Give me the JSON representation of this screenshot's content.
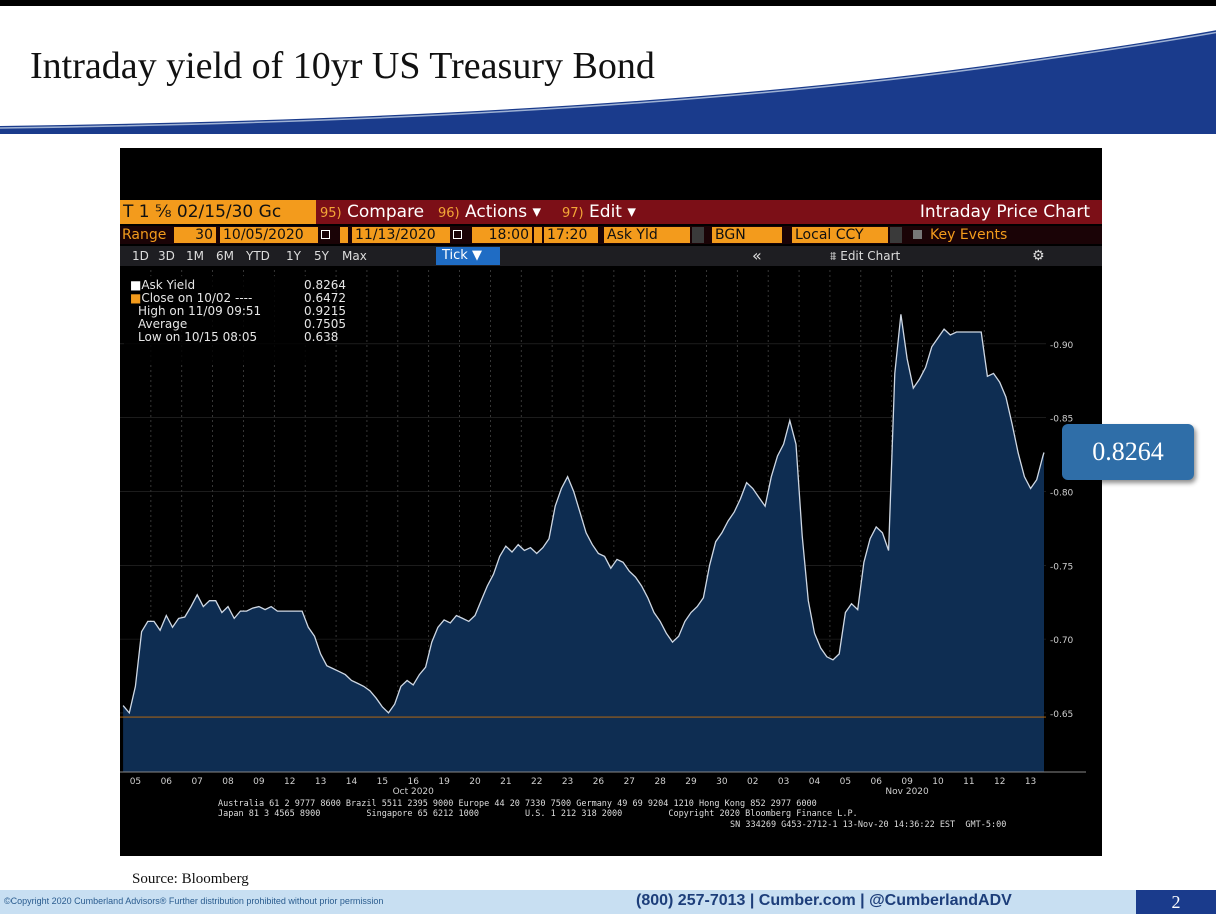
{
  "slide": {
    "title": "Intraday yield of 10yr US Treasury Bond",
    "source": "Source: Bloomberg",
    "callout_value": "0.8264",
    "footer": {
      "copyright": "©Copyright 2020 Cumberland Advisors® Further distribution prohibited without prior permission",
      "contact": "(800) 257-7013 | Cumber.com | @CumberlandADV",
      "page_number": "2"
    }
  },
  "terminal": {
    "ticker": "T 1 ⅝ 02/15/30 Gc",
    "toolbar": [
      {
        "num": "95)",
        "label": "Compare"
      },
      {
        "num": "96)",
        "label": "Actions ▾"
      },
      {
        "num": "97)",
        "label": "Edit ▾"
      }
    ],
    "chart_title": "Intraday Price Chart",
    "range_label": "Range",
    "range_fields": {
      "days": "30",
      "start_date": "10/05/2020",
      "end_date": "11/13/2020",
      "start_time": "18:00",
      "end_time": "17:20",
      "field": "Ask Yld",
      "source": "BGN",
      "currency": "Local CCY",
      "key_events": "Key Events"
    },
    "periods": [
      "1D",
      "3D",
      "1M",
      "6M",
      "YTD",
      "1Y",
      "5Y",
      "Max"
    ],
    "tick_button": "Tick ▼",
    "collapse_icon": "«",
    "edit_chart": "Edit Chart",
    "settings_icon": "⚙",
    "legend": [
      {
        "label": "Ask Yield",
        "value": "0.8264",
        "color": "#ffffff"
      },
      {
        "label": "Close on 10/02 ----",
        "value": "0.6472",
        "color": "#f39b1c"
      },
      {
        "label": "High on 11/09 09:51",
        "value": "0.9215",
        "color": "#aaaaaa"
      },
      {
        "label": "Average",
        "value": "0.7505",
        "color": "#aaaaaa"
      },
      {
        "label": "Low on 10/15 08:05",
        "value": "0.638",
        "color": "#aaaaaa"
      }
    ],
    "footer_lines": [
      "Australia 61 2 9777 8600 Brazil 5511 2395 9000 Europe 44 20 7330 7500 Germany 49 69 9204 1210 Hong Kong 852 2977 6000",
      "Japan 81 3 4565 8900         Singapore 65 6212 1000         U.S. 1 212 318 2000         Copyright 2020 Bloomberg Finance L.P.",
      "SN 334269 G453-2712-1 13-Nov-20 14:36:22 EST  GMT-5:00"
    ]
  },
  "chart_data": {
    "type": "area",
    "title": "",
    "xlabel": "",
    "ylabel": "",
    "ylim": [
      0.61,
      0.95
    ],
    "yticks": [
      0.65,
      0.7,
      0.75,
      0.8,
      0.85,
      0.9
    ],
    "ytick_labels": [
      "-0.65",
      "-0.70",
      "-0.75",
      "-0.80",
      "-0.85",
      "-0.90"
    ],
    "x_day_labels": [
      "05",
      "06",
      "07",
      "08",
      "09",
      "12",
      "13",
      "14",
      "15",
      "16",
      "19",
      "20",
      "21",
      "22",
      "23",
      "26",
      "27",
      "28",
      "29",
      "30",
      "02",
      "03",
      "04",
      "05",
      "06",
      "09",
      "10",
      "11",
      "12",
      "13"
    ],
    "x_month_labels": [
      {
        "label": "Oct 2020",
        "day_index": 9
      },
      {
        "label": "Nov 2020",
        "day_index": 25
      }
    ],
    "reference_lines": [
      {
        "name": "Close on 10/02",
        "value": 0.6472,
        "color": "#c8700a"
      }
    ],
    "grid": true,
    "series": [
      {
        "name": "Ask Yield",
        "color": "#cfd8e4",
        "fill": "#0e2d52",
        "day_values": [
          [
            0.655,
            0.65,
            0.668,
            0.705,
            0.712
          ],
          [
            0.712,
            0.706,
            0.716,
            0.708,
            0.714
          ],
          [
            0.715,
            0.722,
            0.73,
            0.722,
            0.726
          ],
          [
            0.726,
            0.718,
            0.722,
            0.714,
            0.719
          ],
          [
            0.719,
            0.721,
            0.722,
            0.72,
            0.722
          ],
          [
            0.719,
            0.719,
            0.719,
            0.719,
            0.719
          ],
          [
            0.708,
            0.702,
            0.69,
            0.682,
            0.68
          ],
          [
            0.678,
            0.676,
            0.672,
            0.67,
            0.668
          ],
          [
            0.665,
            0.66,
            0.654,
            0.65,
            0.656
          ],
          [
            0.668,
            0.672,
            0.669,
            0.676,
            0.681
          ],
          [
            0.698,
            0.708,
            0.713,
            0.711,
            0.716
          ],
          [
            0.714,
            0.712,
            0.716,
            0.726,
            0.736
          ],
          [
            0.744,
            0.756,
            0.763,
            0.759,
            0.764
          ],
          [
            0.76,
            0.762,
            0.758,
            0.762,
            0.768
          ],
          [
            0.79,
            0.802,
            0.81,
            0.8,
            0.786
          ],
          [
            0.772,
            0.764,
            0.758,
            0.756,
            0.748
          ],
          [
            0.754,
            0.752,
            0.746,
            0.742,
            0.736
          ],
          [
            0.728,
            0.718,
            0.712,
            0.704,
            0.698
          ],
          [
            0.702,
            0.712,
            0.718,
            0.722,
            0.728
          ],
          [
            0.75,
            0.766,
            0.772,
            0.78,
            0.786
          ],
          [
            0.795,
            0.806,
            0.802,
            0.796,
            0.79
          ],
          [
            0.81,
            0.824,
            0.832,
            0.848,
            0.832
          ],
          [
            0.77,
            0.726,
            0.704,
            0.694,
            0.688
          ],
          [
            0.686,
            0.69,
            0.718,
            0.724,
            0.72
          ],
          [
            0.752,
            0.768,
            0.776,
            0.772,
            0.76
          ],
          [
            0.88,
            0.92,
            0.89,
            0.87,
            0.876
          ],
          [
            0.884,
            0.898,
            0.904,
            0.91,
            0.906
          ],
          [
            0.908,
            0.908,
            0.908,
            0.908,
            0.908
          ],
          [
            0.878,
            0.88,
            0.874,
            0.864,
            0.846
          ],
          [
            0.826,
            0.81,
            0.802,
            0.808,
            0.824
          ]
        ],
        "last": 0.8264
      }
    ]
  }
}
